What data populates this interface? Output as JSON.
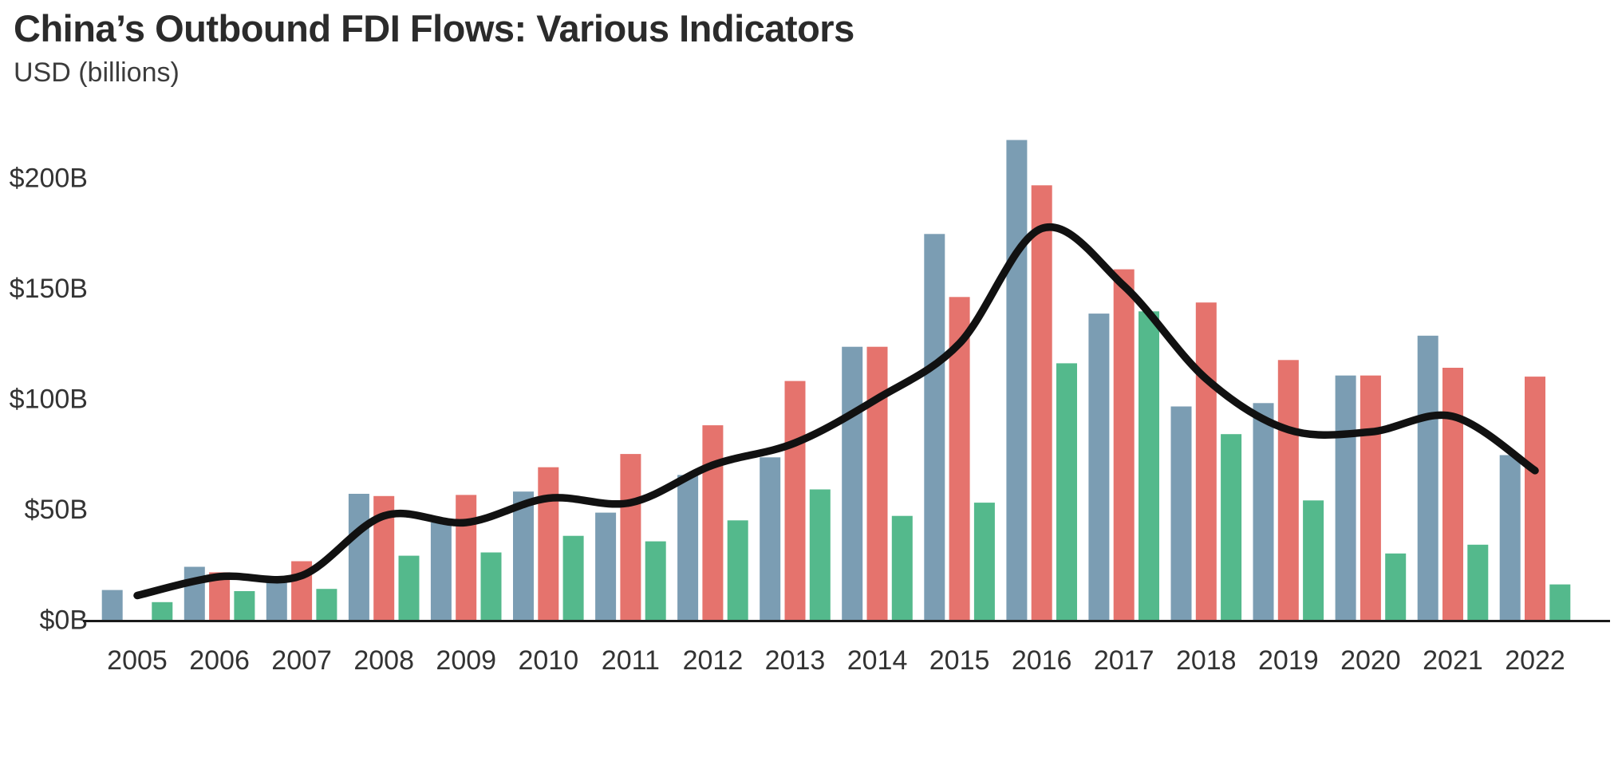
{
  "header": {
    "title": "China’s Outbound FDI Flows: Various Indicators",
    "subtitle": "USD (billions)"
  },
  "chart_data": {
    "type": "bar",
    "title": "China’s Outbound FDI Flows: Various Indicators",
    "subtitle": "USD (billions)",
    "unit": "USD billions",
    "legend": "none",
    "gridlines": false,
    "categories": [
      "2005",
      "2006",
      "2007",
      "2008",
      "2009",
      "2010",
      "2011",
      "2012",
      "2013",
      "2014",
      "2015",
      "2016",
      "2017",
      "2018",
      "2019",
      "2020",
      "2021",
      "2022"
    ],
    "series": [
      {
        "name": "series-blue",
        "color": "#7B9DB3",
        "values": [
          13.5,
          24,
          17,
          57,
          44,
          58,
          48.5,
          65.5,
          73.5,
          123.5,
          174.5,
          217,
          138.5,
          96.5,
          98,
          110.5,
          128.5,
          74.5
        ]
      },
      {
        "name": "series-red",
        "color": "#E5736D",
        "values": [
          null,
          21.5,
          26.5,
          56,
          56.5,
          69,
          75,
          88,
          108,
          123.5,
          146,
          196.5,
          158.5,
          143.5,
          117.5,
          110.5,
          114,
          110
        ]
      },
      {
        "name": "series-green",
        "color": "#54B98C",
        "values": [
          8,
          13,
          14,
          29,
          30.5,
          38,
          35.5,
          45,
          59,
          47,
          53,
          116,
          139.5,
          84,
          54,
          30,
          34,
          16
        ]
      }
    ],
    "trend_line": {
      "name": "trend-line",
      "color": "#111111",
      "description": "smoothed average of the three series",
      "values": [
        11,
        19.5,
        20,
        47,
        44,
        55,
        53,
        70,
        80,
        100,
        125,
        177,
        151,
        109,
        86,
        85,
        92,
        67.5
      ]
    },
    "y_axis": {
      "range": [
        0,
        220
      ],
      "tick_step": 50,
      "ticks": [
        {
          "label": "$0B",
          "value": 0
        },
        {
          "label": "$50B",
          "value": 50
        },
        {
          "label": "$100B",
          "value": 100
        },
        {
          "label": "$150B",
          "value": 150
        },
        {
          "label": "$200B",
          "value": 200
        }
      ]
    },
    "colors": {
      "axis": "#1a1a1a",
      "tick_text": "#333333",
      "title_text": "#2b2b2b"
    }
  }
}
